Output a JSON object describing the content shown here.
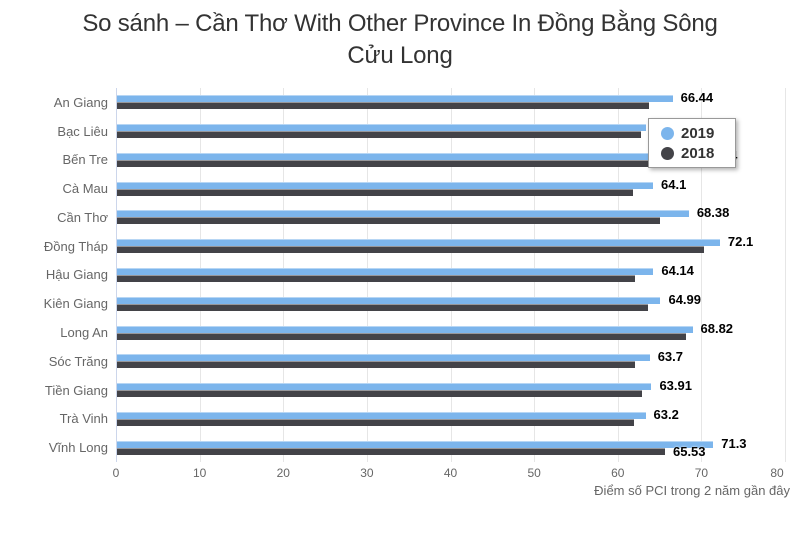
{
  "chart": {
    "title": "So sánh – Cần Thơ With Other Province In Đồng Bằng Sông Cửu Long",
    "xlabel": "Điểm số PCI trong 2 năm gần đây"
  },
  "legend": {
    "items": [
      {
        "label": "2019",
        "color": "#7cb5ec"
      },
      {
        "label": "2018",
        "color": "#434348"
      }
    ]
  },
  "colors": {
    "series_2019": "#7cb5ec",
    "series_2018": "#434348",
    "gridline": "#e6e6e6",
    "axis_line": "#ccd6eb",
    "title_text": "#333333",
    "axis_text": "#666666",
    "data_label_text": "#000000"
  },
  "chart_data": {
    "type": "bar",
    "orientation": "horizontal",
    "title": "So sánh – Cần Thơ With Other Province In Đồng Bằng Sông Cửu Long",
    "xlabel": "Điểm số PCI trong 2 năm gần đây",
    "xlim": [
      0,
      80
    ],
    "ticks": [
      0,
      10,
      20,
      30,
      40,
      50,
      60,
      70,
      80
    ],
    "gridlines": true,
    "legend_position": "floating inside plot, upper right",
    "categories": [
      "An Giang",
      "Bạc Liêu",
      "Bến Tre",
      "Cà Mau",
      "Cần Thơ",
      "Đồng Tháp",
      "Hậu Giang",
      "Kiên Giang",
      "Long An",
      "Sóc Trăng",
      "Tiền Giang",
      "Trà Vinh",
      "Vĩnh Long"
    ],
    "series": [
      {
        "name": "2019",
        "color": "#7cb5ec",
        "values": [
          66.44,
          63.2,
          69.34,
          64.1,
          68.38,
          72.1,
          64.14,
          64.99,
          68.82,
          63.7,
          63.91,
          63.2,
          71.3
        ],
        "label_indices": [
          0,
          1,
          2,
          3,
          4,
          5,
          6,
          7,
          8,
          9,
          10,
          11,
          12
        ],
        "note": "labels for Bạc Liêu and most of Bến Tre (69.34, only trailing 4 visible) are covered by the floating legend"
      },
      {
        "name": "2018",
        "color": "#434348",
        "values": [
          63.65,
          62.7,
          67.67,
          61.73,
          64.98,
          70.19,
          62.0,
          63.5,
          68.09,
          61.9,
          62.8,
          61.8,
          65.53
        ],
        "label_indices": [
          12
        ],
        "note": "only the Vĩnh Long 2018 value label (65.53) is visible; other 2018 bars unlabeled, values estimated from bar lengths"
      }
    ]
  }
}
